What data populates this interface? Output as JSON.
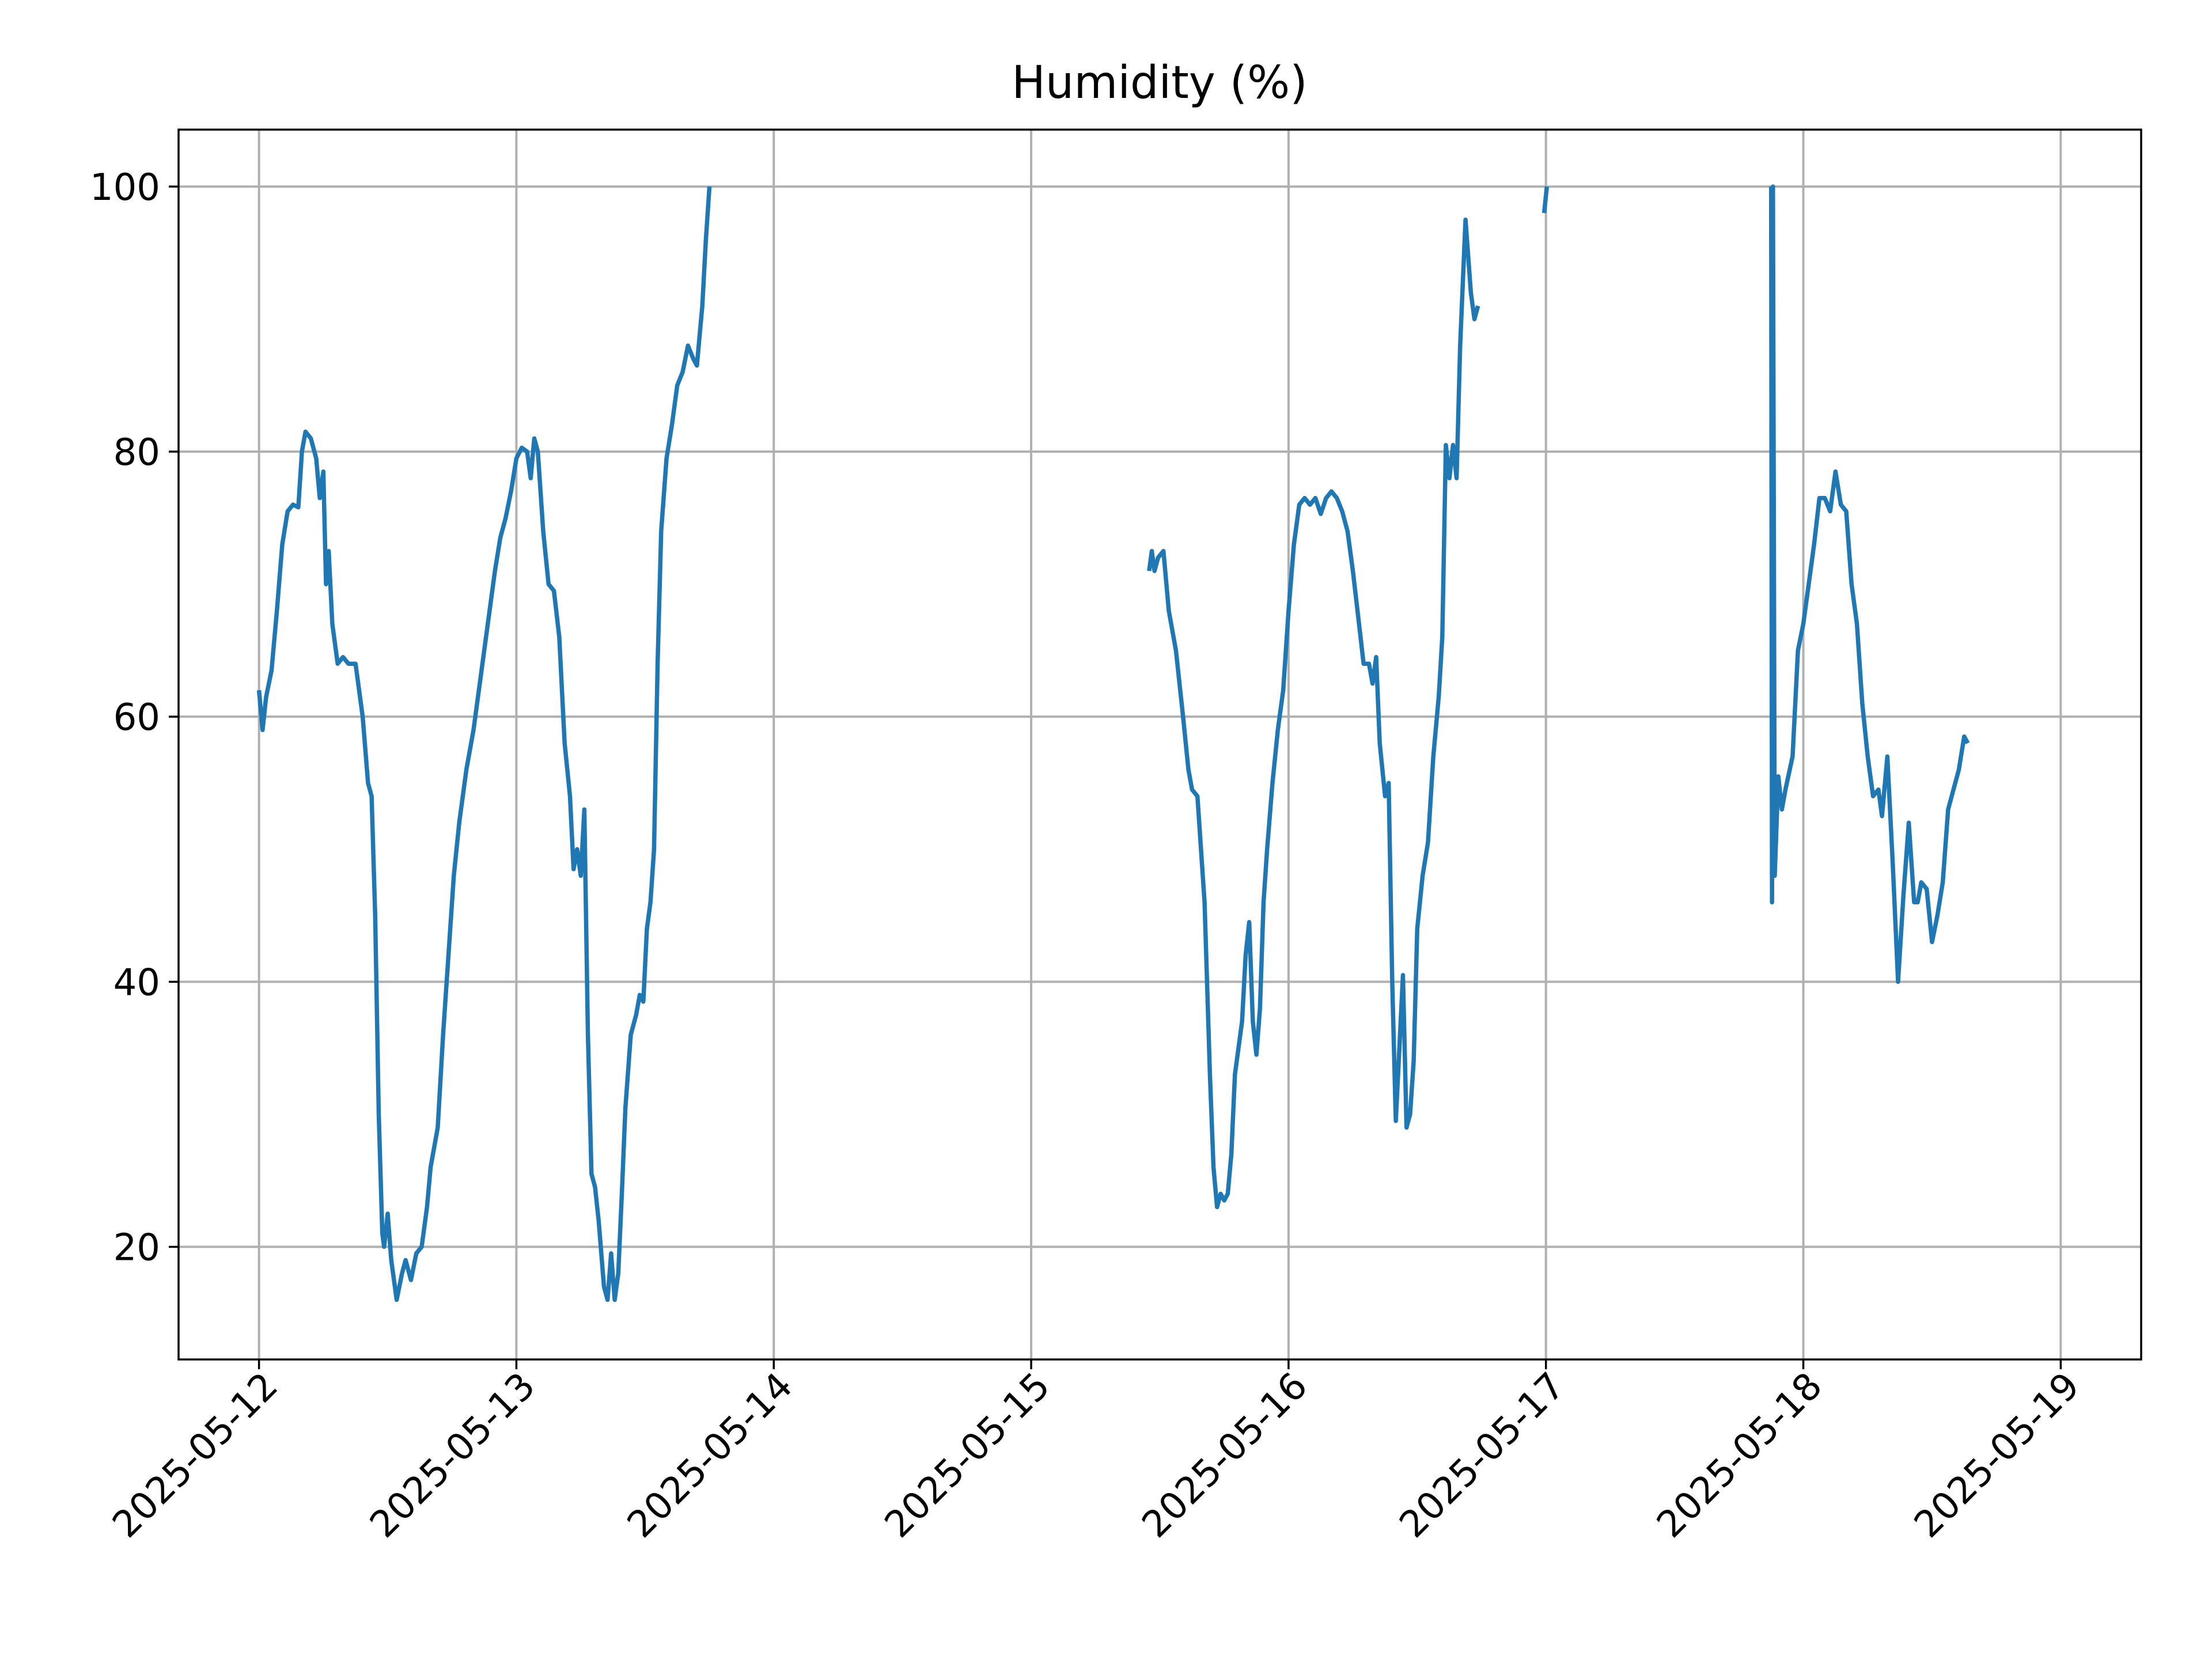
{
  "chart_data": {
    "type": "line",
    "title": "Humidity (%)",
    "xlabel": "",
    "ylabel": "",
    "x_axis_type": "date",
    "xlim": [
      "2025-05-11T16:30",
      "2025-05-19T07:30"
    ],
    "ylim": [
      11.5,
      104.3
    ],
    "x_ticks": [
      "2025-05-12",
      "2025-05-13",
      "2025-05-14",
      "2025-05-15",
      "2025-05-16",
      "2025-05-17",
      "2025-05-18",
      "2025-05-19"
    ],
    "y_ticks": [
      20,
      40,
      60,
      80,
      100
    ],
    "grid": true,
    "legend": "none",
    "colors": {
      "series": "#1f77b4"
    },
    "series": [
      {
        "points": [
          [
            "2025-05-12T00:00",
            62.0
          ],
          [
            "2025-05-12T00:20",
            59.0
          ],
          [
            "2025-05-12T00:40",
            61.5
          ],
          [
            "2025-05-12T01:10",
            63.5
          ],
          [
            "2025-05-12T01:40",
            68.0
          ],
          [
            "2025-05-12T02:10",
            73.0
          ],
          [
            "2025-05-12T02:40",
            75.5
          ],
          [
            "2025-05-12T03:10",
            76.0
          ],
          [
            "2025-05-12T03:40",
            75.8
          ],
          [
            "2025-05-12T04:00",
            80.0
          ],
          [
            "2025-05-12T04:20",
            81.5
          ],
          [
            "2025-05-12T04:50",
            81.0
          ],
          [
            "2025-05-12T05:20",
            79.5
          ],
          [
            "2025-05-12T05:40",
            76.5
          ],
          [
            "2025-05-12T06:00",
            78.5
          ],
          [
            "2025-05-12T06:15",
            70.0
          ],
          [
            "2025-05-12T06:30",
            72.5
          ],
          [
            "2025-05-12T06:50",
            67.0
          ],
          [
            "2025-05-12T07:20",
            64.0
          ],
          [
            "2025-05-12T07:50",
            64.5
          ],
          [
            "2025-05-12T08:20",
            64.0
          ],
          [
            "2025-05-12T09:00",
            64.0
          ],
          [
            "2025-05-12T09:40",
            60.0
          ],
          [
            "2025-05-12T10:10",
            55.0
          ],
          [
            "2025-05-12T10:30",
            54.0
          ],
          [
            "2025-05-12T10:50",
            45.0
          ],
          [
            "2025-05-12T11:10",
            30.0
          ],
          [
            "2025-05-12T11:30",
            21.0
          ],
          [
            "2025-05-12T11:40",
            20.0
          ],
          [
            "2025-05-12T12:00",
            22.5
          ],
          [
            "2025-05-12T12:20",
            19.0
          ],
          [
            "2025-05-12T12:50",
            16.0
          ],
          [
            "2025-05-12T13:20",
            18.0
          ],
          [
            "2025-05-12T13:40",
            19.0
          ],
          [
            "2025-05-12T14:10",
            17.5
          ],
          [
            "2025-05-12T14:40",
            19.5
          ],
          [
            "2025-05-12T15:10",
            20.0
          ],
          [
            "2025-05-12T15:40",
            23.0
          ],
          [
            "2025-05-12T16:00",
            26.0
          ],
          [
            "2025-05-12T16:40",
            29.0
          ],
          [
            "2025-05-12T17:10",
            36.0
          ],
          [
            "2025-05-12T17:40",
            42.0
          ],
          [
            "2025-05-12T18:10",
            48.0
          ],
          [
            "2025-05-12T18:40",
            52.0
          ],
          [
            "2025-05-12T19:20",
            56.0
          ],
          [
            "2025-05-12T20:00",
            59.0
          ],
          [
            "2025-05-12T20:40",
            63.0
          ],
          [
            "2025-05-12T21:20",
            67.0
          ],
          [
            "2025-05-12T22:00",
            71.0
          ],
          [
            "2025-05-12T22:30",
            73.5
          ],
          [
            "2025-05-12T23:00",
            75.0
          ],
          [
            "2025-05-12T23:30",
            77.0
          ],
          [
            "2025-05-13T00:00",
            79.5
          ],
          [
            "2025-05-13T00:30",
            80.3
          ],
          [
            "2025-05-13T01:00",
            80.0
          ],
          [
            "2025-05-13T01:20",
            78.0
          ],
          [
            "2025-05-13T01:40",
            81.0
          ],
          [
            "2025-05-13T02:00",
            80.0
          ],
          [
            "2025-05-13T02:30",
            74.0
          ],
          [
            "2025-05-13T03:00",
            70.0
          ],
          [
            "2025-05-13T03:30",
            69.5
          ],
          [
            "2025-05-13T04:00",
            66.0
          ],
          [
            "2025-05-13T04:30",
            58.0
          ],
          [
            "2025-05-13T05:00",
            54.0
          ],
          [
            "2025-05-13T05:20",
            48.5
          ],
          [
            "2025-05-13T05:40",
            50.0
          ],
          [
            "2025-05-13T06:00",
            48.0
          ],
          [
            "2025-05-13T06:20",
            53.0
          ],
          [
            "2025-05-13T06:40",
            36.0
          ],
          [
            "2025-05-13T07:00",
            25.5
          ],
          [
            "2025-05-13T07:20",
            24.5
          ],
          [
            "2025-05-13T07:40",
            22.0
          ],
          [
            "2025-05-13T08:10",
            17.0
          ],
          [
            "2025-05-13T08:30",
            16.0
          ],
          [
            "2025-05-13T08:50",
            19.5
          ],
          [
            "2025-05-13T09:10",
            16.0
          ],
          [
            "2025-05-13T09:30",
            18.0
          ],
          [
            "2025-05-13T09:50",
            24.0
          ],
          [
            "2025-05-13T10:10",
            30.5
          ],
          [
            "2025-05-13T10:40",
            36.0
          ],
          [
            "2025-05-13T11:10",
            37.5
          ],
          [
            "2025-05-13T11:30",
            39.0
          ],
          [
            "2025-05-13T11:50",
            38.5
          ],
          [
            "2025-05-13T12:10",
            44.0
          ],
          [
            "2025-05-13T12:30",
            46.0
          ],
          [
            "2025-05-13T12:50",
            50.0
          ],
          [
            "2025-05-13T13:10",
            64.0
          ],
          [
            "2025-05-13T13:30",
            74.0
          ],
          [
            "2025-05-13T14:00",
            79.5
          ],
          [
            "2025-05-13T14:30",
            82.0
          ],
          [
            "2025-05-13T15:00",
            85.0
          ],
          [
            "2025-05-13T15:30",
            86.0
          ],
          [
            "2025-05-13T16:00",
            88.0
          ],
          [
            "2025-05-13T16:30",
            87.0
          ],
          [
            "2025-05-13T16:50",
            86.5
          ],
          [
            "2025-05-13T17:20",
            91.0
          ],
          [
            "2025-05-13T17:40",
            96.0
          ],
          [
            "2025-05-13T18:00",
            100.0
          ],
          null,
          [
            "2025-05-15T11:00",
            71.0
          ],
          [
            "2025-05-15T11:15",
            72.5
          ],
          [
            "2025-05-15T11:30",
            71.0
          ],
          [
            "2025-05-15T11:50",
            72.0
          ],
          [
            "2025-05-15T12:20",
            72.5
          ],
          [
            "2025-05-15T12:50",
            68.0
          ],
          [
            "2025-05-15T13:30",
            65.0
          ],
          [
            "2025-05-15T14:10",
            60.0
          ],
          [
            "2025-05-15T14:40",
            56.0
          ],
          [
            "2025-05-15T15:00",
            54.5
          ],
          [
            "2025-05-15T15:30",
            54.0
          ],
          [
            "2025-05-15T16:10",
            46.0
          ],
          [
            "2025-05-15T16:40",
            33.0
          ],
          [
            "2025-05-15T17:00",
            26.0
          ],
          [
            "2025-05-15T17:20",
            23.0
          ],
          [
            "2025-05-15T17:40",
            24.0
          ],
          [
            "2025-05-15T18:00",
            23.5
          ],
          [
            "2025-05-15T18:20",
            24.0
          ],
          [
            "2025-05-15T18:40",
            27.0
          ],
          [
            "2025-05-15T19:00",
            33.0
          ],
          [
            "2025-05-15T19:20",
            35.0
          ],
          [
            "2025-05-15T19:40",
            37.0
          ],
          [
            "2025-05-15T20:00",
            42.0
          ],
          [
            "2025-05-15T20:20",
            44.5
          ],
          [
            "2025-05-15T20:40",
            37.0
          ],
          [
            "2025-05-15T21:00",
            34.5
          ],
          [
            "2025-05-15T21:20",
            38.0
          ],
          [
            "2025-05-15T21:40",
            46.0
          ],
          [
            "2025-05-15T22:00",
            50.0
          ],
          [
            "2025-05-15T22:30",
            55.0
          ],
          [
            "2025-05-15T23:00",
            59.0
          ],
          [
            "2025-05-15T23:30",
            62.0
          ],
          [
            "2025-05-16T00:00",
            68.0
          ],
          [
            "2025-05-16T00:30",
            73.0
          ],
          [
            "2025-05-16T01:00",
            76.0
          ],
          [
            "2025-05-16T01:30",
            76.5
          ],
          [
            "2025-05-16T02:00",
            76.0
          ],
          [
            "2025-05-16T02:30",
            76.5
          ],
          [
            "2025-05-16T03:00",
            75.3
          ],
          [
            "2025-05-16T03:30",
            76.5
          ],
          [
            "2025-05-16T04:00",
            77.0
          ],
          [
            "2025-05-16T04:30",
            76.5
          ],
          [
            "2025-05-16T05:00",
            75.5
          ],
          [
            "2025-05-16T05:30",
            74.0
          ],
          [
            "2025-05-16T06:00",
            71.0
          ],
          [
            "2025-05-16T06:30",
            67.5
          ],
          [
            "2025-05-16T07:00",
            64.0
          ],
          [
            "2025-05-16T07:30",
            64.0
          ],
          [
            "2025-05-16T07:50",
            62.5
          ],
          [
            "2025-05-16T08:10",
            64.5
          ],
          [
            "2025-05-16T08:30",
            58.0
          ],
          [
            "2025-05-16T09:00",
            54.0
          ],
          [
            "2025-05-16T09:20",
            55.0
          ],
          [
            "2025-05-16T09:40",
            40.0
          ],
          [
            "2025-05-16T10:00",
            29.5
          ],
          [
            "2025-05-16T10:20",
            35.0
          ],
          [
            "2025-05-16T10:40",
            40.5
          ],
          [
            "2025-05-16T11:00",
            29.0
          ],
          [
            "2025-05-16T11:20",
            30.0
          ],
          [
            "2025-05-16T11:40",
            34.0
          ],
          [
            "2025-05-16T12:00",
            44.0
          ],
          [
            "2025-05-16T12:30",
            48.0
          ],
          [
            "2025-05-16T13:00",
            50.5
          ],
          [
            "2025-05-16T13:30",
            57.0
          ],
          [
            "2025-05-16T14:00",
            61.5
          ],
          [
            "2025-05-16T14:20",
            66.0
          ],
          [
            "2025-05-16T14:40",
            80.5
          ],
          [
            "2025-05-16T15:00",
            78.0
          ],
          [
            "2025-05-16T15:20",
            80.5
          ],
          [
            "2025-05-16T15:40",
            78.0
          ],
          [
            "2025-05-16T16:00",
            88.0
          ],
          [
            "2025-05-16T16:30",
            97.5
          ],
          [
            "2025-05-16T17:00",
            92.0
          ],
          [
            "2025-05-16T17:20",
            90.0
          ],
          [
            "2025-05-16T17:40",
            91.0
          ],
          null,
          [
            "2025-05-16T23:50",
            98.0
          ],
          [
            "2025-05-17T00:05",
            100.0
          ],
          null,
          [
            "2025-05-17T21:00",
            100.0
          ],
          [
            "2025-05-17T21:05",
            46.0
          ],
          [
            "2025-05-17T21:10",
            100.0
          ],
          [
            "2025-05-17T21:20",
            48.0
          ],
          [
            "2025-05-17T21:40",
            55.5
          ],
          [
            "2025-05-17T22:00",
            53.0
          ],
          [
            "2025-05-17T22:20",
            54.5
          ],
          [
            "2025-05-17T23:00",
            57.0
          ],
          [
            "2025-05-17T23:30",
            65.0
          ],
          [
            "2025-05-18T00:00",
            67.0
          ],
          [
            "2025-05-18T00:30",
            70.0
          ],
          [
            "2025-05-18T01:00",
            73.0
          ],
          [
            "2025-05-18T01:30",
            76.5
          ],
          [
            "2025-05-18T02:00",
            76.5
          ],
          [
            "2025-05-18T02:30",
            75.5
          ],
          [
            "2025-05-18T03:00",
            78.5
          ],
          [
            "2025-05-18T03:30",
            76.0
          ],
          [
            "2025-05-18T04:00",
            75.5
          ],
          [
            "2025-05-18T04:30",
            70.0
          ],
          [
            "2025-05-18T05:00",
            67.0
          ],
          [
            "2025-05-18T05:30",
            61.0
          ],
          [
            "2025-05-18T06:00",
            57.0
          ],
          [
            "2025-05-18T06:30",
            54.0
          ],
          [
            "2025-05-18T07:00",
            54.5
          ],
          [
            "2025-05-18T07:20",
            52.5
          ],
          [
            "2025-05-18T07:50",
            57.0
          ],
          [
            "2025-05-18T08:20",
            49.0
          ],
          [
            "2025-05-18T08:50",
            40.0
          ],
          [
            "2025-05-18T09:20",
            46.5
          ],
          [
            "2025-05-18T09:50",
            52.0
          ],
          [
            "2025-05-18T10:20",
            46.0
          ],
          [
            "2025-05-18T10:40",
            46.0
          ],
          [
            "2025-05-18T11:00",
            47.5
          ],
          [
            "2025-05-18T11:30",
            47.0
          ],
          [
            "2025-05-18T12:00",
            43.0
          ],
          [
            "2025-05-18T12:30",
            45.0
          ],
          [
            "2025-05-18T13:00",
            47.5
          ],
          [
            "2025-05-18T13:30",
            53.0
          ],
          [
            "2025-05-18T14:00",
            54.5
          ],
          [
            "2025-05-18T14:30",
            56.0
          ],
          [
            "2025-05-18T15:00",
            58.5
          ],
          [
            "2025-05-18T15:20",
            58.0
          ]
        ]
      }
    ]
  }
}
